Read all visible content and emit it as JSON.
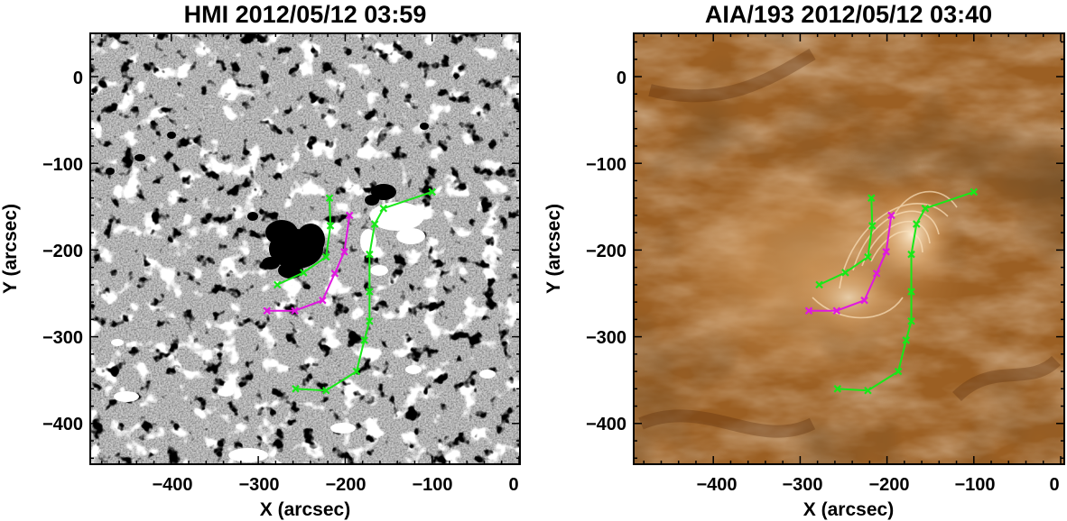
{
  "panels": [
    {
      "title": "HMI 2012/05/12 03:59",
      "kind": "magnetogram",
      "xlabel": "X (arcsec)",
      "ylabel": "Y (arcsec)",
      "xticks": [
        "−400",
        "−300",
        "−200",
        "−100",
        "0"
      ],
      "yticks": [
        "0",
        "−100",
        "−200",
        "−300",
        "−400"
      ]
    },
    {
      "title": "AIA/193 2012/05/12 03:40",
      "kind": "euv",
      "xlabel": "X (arcsec)",
      "ylabel": "Y (arcsec)",
      "xticks": [
        "−400",
        "−300",
        "−200",
        "−100",
        "0"
      ],
      "yticks": [
        "0",
        "−100",
        "−200",
        "−300",
        "−400"
      ]
    }
  ],
  "overlay_paths": {
    "green_east": [
      [
        -278,
        -240
      ],
      [
        -248,
        -226
      ],
      [
        -222,
        -208
      ],
      [
        -217,
        -172
      ],
      [
        -218,
        -140
      ]
    ],
    "magenta": [
      [
        -290,
        -270
      ],
      [
        -258,
        -270
      ],
      [
        -226,
        -258
      ],
      [
        -212,
        -227
      ],
      [
        -201,
        -202
      ],
      [
        -195,
        -160
      ]
    ],
    "green_west": [
      [
        -257,
        -360
      ],
      [
        -222,
        -362
      ],
      [
        -187,
        -340
      ],
      [
        -178,
        -304
      ],
      [
        -172,
        -282
      ],
      [
        -172,
        -248
      ],
      [
        -172,
        -205
      ],
      [
        -166,
        -170
      ],
      [
        -156,
        -152
      ],
      [
        -100,
        -133
      ]
    ]
  },
  "colors": {
    "green": "#18e818",
    "magenta": "#e018e0",
    "hmi_gray": "#7a7a7a",
    "aia_brown": "#9b5f23"
  }
}
